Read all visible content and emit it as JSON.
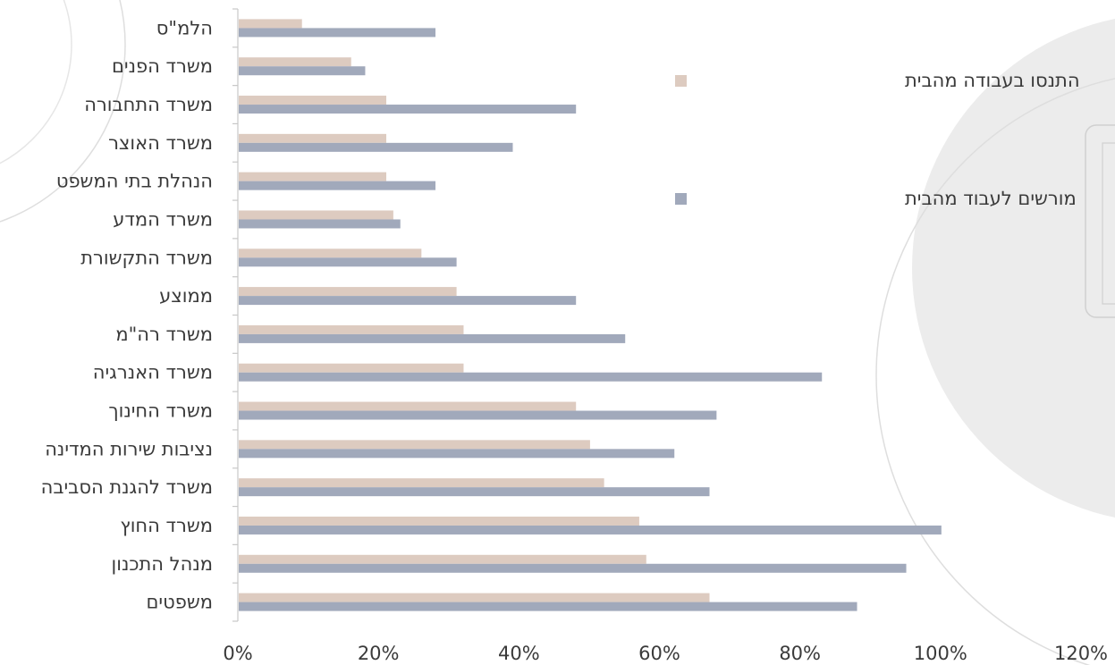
{
  "chart_data": {
    "type": "bar",
    "orientation": "horizontal",
    "categories": [
      "הלמ\"ס",
      "משרד הפנים",
      "משרד התחבורה",
      "משרד האוצר",
      "הנהלת בתי המשפט",
      "משרד המדע",
      "משרד התקשורת",
      "ממוצע",
      "משרד רה\"מ",
      "משרד האנרגיה",
      "משרד החינוך",
      "נציבות שירות המדינה",
      "משרד להגנת הסביבה",
      "משרד החוץ",
      "מנהל התכנון",
      "משפטים"
    ],
    "series": [
      {
        "name": "התנסו בעבודה מהבית",
        "color": "#ddcbc0",
        "values": [
          9,
          16,
          21,
          21,
          21,
          22,
          26,
          31,
          32,
          32,
          48,
          50,
          52,
          57,
          58,
          67
        ]
      },
      {
        "name": "מורשים לעבוד מהבית",
        "color": "#a1a9bb",
        "values": [
          28,
          18,
          48,
          39,
          28,
          23,
          31,
          48,
          55,
          83,
          68,
          62,
          67,
          100,
          95,
          88
        ]
      }
    ],
    "x_ticks": [
      "0%",
      "20%",
      "40%",
      "60%",
      "80%",
      "100%",
      "120%"
    ],
    "xlim": [
      0,
      120
    ],
    "xlabel": "",
    "ylabel": "",
    "title": "",
    "legend_position": "right",
    "grid": false
  },
  "colors": {
    "axis": "#c8c8c8",
    "background_shape": "#ececec",
    "decor_line": "#d9d9d9"
  }
}
